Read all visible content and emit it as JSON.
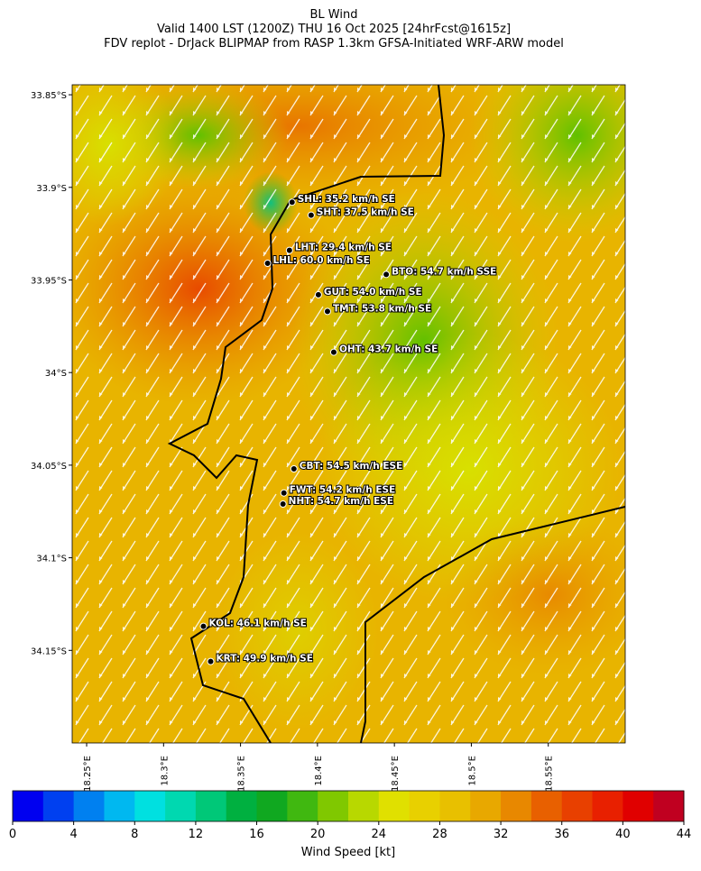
{
  "title": [
    "BL Wind",
    "Valid 1400 LST (1200Z) THU 16 Oct 2025 [24hrFcst@1615z]",
    "FDV replot - DrJack BLIPMAP from RASP 1.3km GFSA-Initiated WRF-ARW model"
  ],
  "map": {
    "xlim": [
      18.2406,
      18.6
    ],
    "ylim": [
      -34.2,
      -33.8446
    ],
    "xticks": [
      {
        "value": 18.25,
        "label": "18.25°E"
      },
      {
        "value": 18.3,
        "label": "18.3°E"
      },
      {
        "value": 18.35,
        "label": "18.35°E"
      },
      {
        "value": 18.4,
        "label": "18.4°E"
      },
      {
        "value": 18.45,
        "label": "18.45°E"
      },
      {
        "value": 18.5,
        "label": "18.5°E"
      },
      {
        "value": 18.55,
        "label": "18.55°E"
      }
    ],
    "yticks": [
      {
        "value": -33.85,
        "label": "33.85°S"
      },
      {
        "value": -33.9,
        "label": "33.9°S"
      },
      {
        "value": -33.95,
        "label": "33.95°S"
      },
      {
        "value": -34,
        "label": "34°S"
      },
      {
        "value": -34.05,
        "label": "34.05°S"
      },
      {
        "value": -34.1,
        "label": "34.1°S"
      },
      {
        "value": -34.15,
        "label": "34.15°S"
      }
    ],
    "stations": [
      {
        "label": "SHL: 35.2 km/h SE",
        "lon": 18.3835,
        "lat": -33.908
      },
      {
        "label": "SHT: 37.5 km/h SE",
        "lon": 18.3959,
        "lat": -33.915
      },
      {
        "label": "LHT: 29.4 km/h SE",
        "lon": 18.3818,
        "lat": -33.934
      },
      {
        "label": "LHL: 60.0 km/h SE",
        "lon": 18.3676,
        "lat": -33.941
      },
      {
        "label": "BTO: 54.7 km/h SSE",
        "lon": 18.4447,
        "lat": -33.947
      },
      {
        "label": "GUT: 54.0 km/h SE",
        "lon": 18.4006,
        "lat": -33.958
      },
      {
        "label": "TMT: 53.8 km/h SE",
        "lon": 18.4065,
        "lat": -33.967
      },
      {
        "label": "OHT: 43.7 km/h SE",
        "lon": 18.4106,
        "lat": -33.989
      },
      {
        "label": "CBT: 54.5 km/h ESE",
        "lon": 18.3847,
        "lat": -34.052
      },
      {
        "label": "FWT: 54.2 km/h ESE",
        "lon": 18.3782,
        "lat": -34.065
      },
      {
        "label": "NHT: 54.7 km/h ESE",
        "lon": 18.3776,
        "lat": -34.071
      },
      {
        "label": "KOL: 46.1 km/h SE",
        "lon": 18.3259,
        "lat": -34.137
      },
      {
        "label": "KRT: 49.9 km/h SE",
        "lon": 18.3306,
        "lat": -34.156
      }
    ]
  },
  "colorbar": {
    "label": "Wind Speed [kt]",
    "lim": [
      0,
      44
    ],
    "ticks": [
      0,
      4,
      8,
      12,
      16,
      20,
      24,
      28,
      32,
      36,
      40,
      44
    ],
    "colors": [
      "#0000f0",
      "#0040f0",
      "#0080f0",
      "#00b8f0",
      "#00e0e0",
      "#00d8b0",
      "#00c878",
      "#00b040",
      "#10a820",
      "#40b810",
      "#80c800",
      "#b8d800",
      "#e0e000",
      "#e8d000",
      "#e8c000",
      "#e8a800",
      "#e88800",
      "#e86000",
      "#e84000",
      "#e82000",
      "#e00000",
      "#c00020"
    ]
  }
}
